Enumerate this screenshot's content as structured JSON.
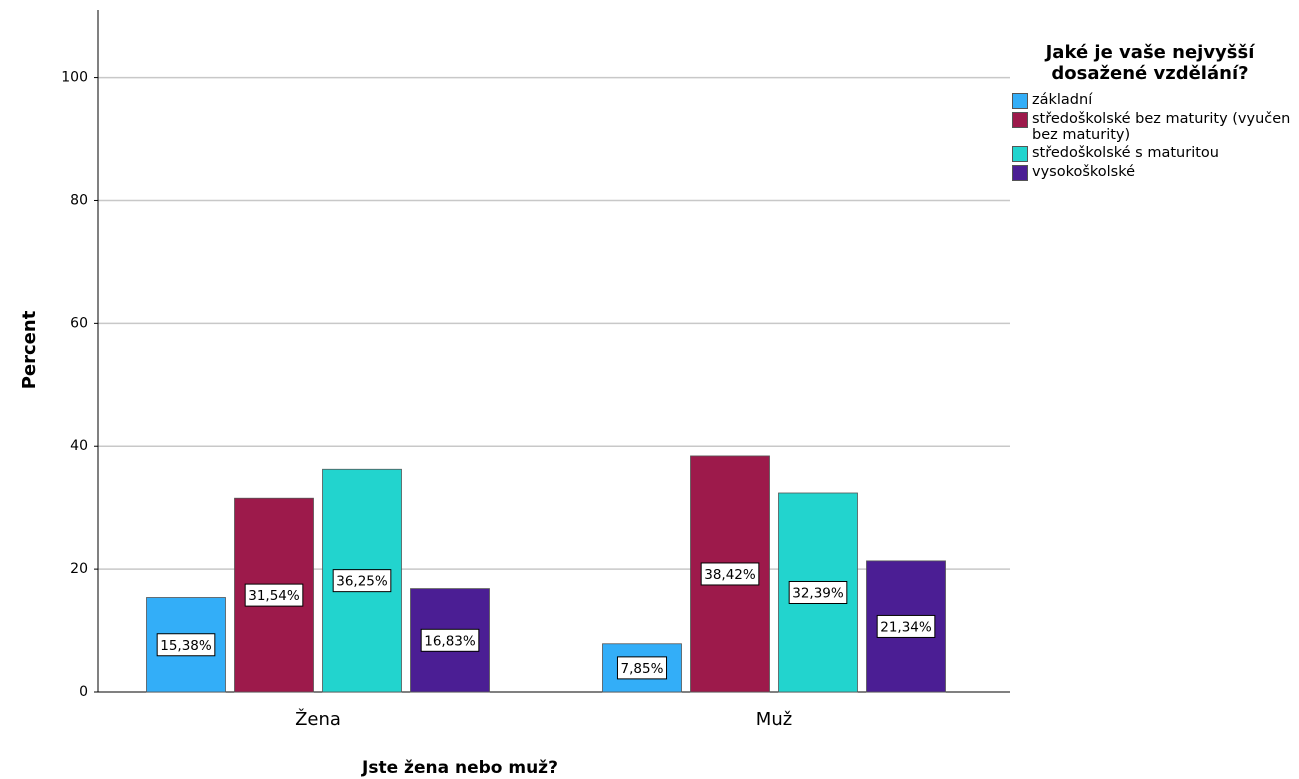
{
  "chart_data": {
    "type": "bar",
    "categories": [
      "Žena",
      "Muž"
    ],
    "series": [
      {
        "name": "základní",
        "color": "#33aef8",
        "values": [
          15.38,
          7.85
        ],
        "value_labels": [
          "15,38%",
          "7,85%"
        ]
      },
      {
        "name": "středoškolské bez maturity (vyučen bez maturity)",
        "color": "#9d1a4b",
        "values": [
          31.54,
          38.42
        ],
        "value_labels": [
          "31,54%",
          "38,42%"
        ]
      },
      {
        "name": "středoškolské s maturitou",
        "color": "#22d4ce",
        "values": [
          36.25,
          32.39
        ],
        "value_labels": [
          "36,25%",
          "32,39%"
        ]
      },
      {
        "name": "vysokoškolské",
        "color": "#4b1e94",
        "values": [
          16.83,
          21.34
        ],
        "value_labels": [
          "16,83%",
          "21,34%"
        ]
      }
    ],
    "legend_title": "Jaké je vaše nejvyšší dosažené vzdělání?",
    "ylabel": "Percent",
    "xlabel": "Jste žena nebo muž?",
    "ylim": [
      0,
      111
    ],
    "yticks": [
      0,
      20,
      40,
      60,
      80,
      100
    ],
    "grid": true,
    "legend": "right"
  }
}
